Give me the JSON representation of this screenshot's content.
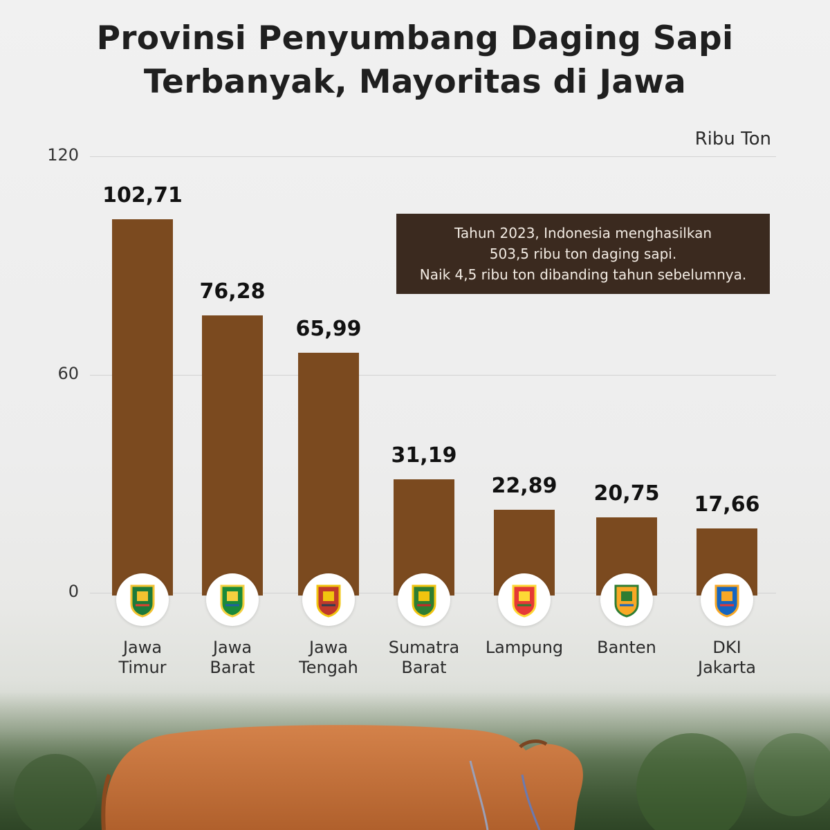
{
  "title_line1": "Provinsi Penyumbang Daging Sapi",
  "title_line2": "Terbanyak, Mayoritas di Jawa",
  "unit_label": "Ribu Ton",
  "note": {
    "line1": "Tahun 2023, Indonesia menghasilkan",
    "line2": "503,5 ribu ton daging sapi.",
    "line3": "Naik 4,5 ribu ton dibanding tahun sebelumnya."
  },
  "colors": {
    "bar": "#7b4a1f",
    "note_bg": "#3b2a1f"
  },
  "chart_data": {
    "type": "bar",
    "title": "Provinsi Penyumbang Daging Sapi Terbanyak, Mayoritas di Jawa",
    "ylabel": "Ribu Ton",
    "ylim": [
      0,
      120
    ],
    "yticks": [
      "0",
      "60",
      "120"
    ],
    "grid": true,
    "categories": [
      [
        "Jawa",
        "Timur"
      ],
      [
        "Jawa",
        "Barat"
      ],
      [
        "Jawa",
        "Tengah"
      ],
      [
        "Sumatra",
        "Barat"
      ],
      [
        "Lampung"
      ],
      [
        "Banten"
      ],
      [
        "DKI",
        "Jakarta"
      ]
    ],
    "values": [
      102.71,
      76.28,
      65.99,
      31.19,
      22.89,
      20.75,
      17.66
    ],
    "value_labels": [
      "102,71",
      "76,28",
      "65,99",
      "31,19",
      "22,89",
      "20,75",
      "17,66"
    ],
    "emblems": [
      "jawa-timur-emblem-icon",
      "jawa-barat-emblem-icon",
      "jawa-tengah-emblem-icon",
      "sumatra-barat-emblem-icon",
      "lampung-emblem-icon",
      "banten-emblem-icon",
      "dki-jakarta-emblem-icon"
    ]
  }
}
